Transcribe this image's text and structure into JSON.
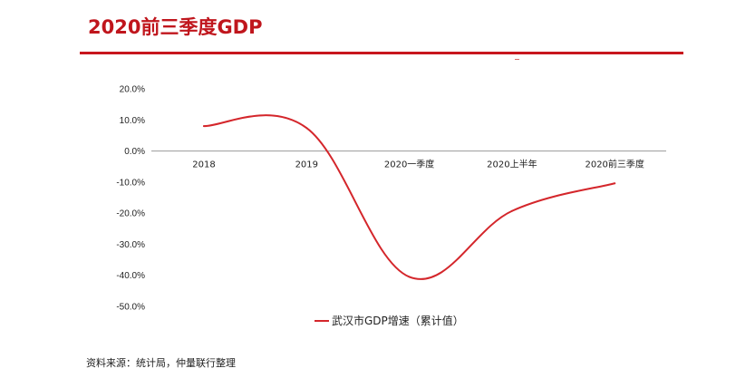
{
  "header": {
    "title": "2020前三季度GDP"
  },
  "footer": {
    "source": "资料来源：统计局，仲量联行整理"
  },
  "colors": {
    "accent": "#c8161d",
    "series": "#d4262b",
    "axis": "#9a9a9a"
  },
  "chart_data": {
    "type": "line",
    "categories": [
      "2018",
      "2019",
      "2020一季度",
      "2020上半年",
      "2020前三季度"
    ],
    "series": [
      {
        "name": "武汉市GDP增速（累计值）",
        "values": [
          8.0,
          7.4,
          -40.5,
          -19.3,
          -10.4
        ]
      }
    ],
    "smooth": true,
    "yticks": [
      "20.0%",
      "10.0%",
      "0.0%",
      "-10.0%",
      "-20.0%",
      "-30.0%",
      "-40.0%",
      "-50.0%"
    ],
    "ylim": [
      -50,
      20
    ],
    "grid": false,
    "legend": "bottom-center"
  }
}
